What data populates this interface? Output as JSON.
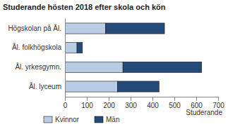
{
  "chart_data": {
    "type": "bar",
    "orientation": "horizontal",
    "stacked": true,
    "title": "Studerande hösten 2018 efter skola och kön",
    "x_label": "Studerande",
    "categories": [
      "Högskolan på Ål.",
      "Ål. folkhögskola",
      "Ål. yrkesgymn.",
      "Ål. lyceum"
    ],
    "series": [
      {
        "name": "Kvinnor",
        "color": "#b8cce4",
        "values": [
          185,
          55,
          265,
          240
        ]
      },
      {
        "name": "Män",
        "color": "#244a7a",
        "values": [
          270,
          25,
          360,
          190
        ]
      }
    ],
    "xlim": [
      0,
      700
    ],
    "xticks": [
      0,
      100,
      200,
      300,
      400,
      500,
      600,
      700
    ],
    "grid": false,
    "legend": "bottom"
  }
}
